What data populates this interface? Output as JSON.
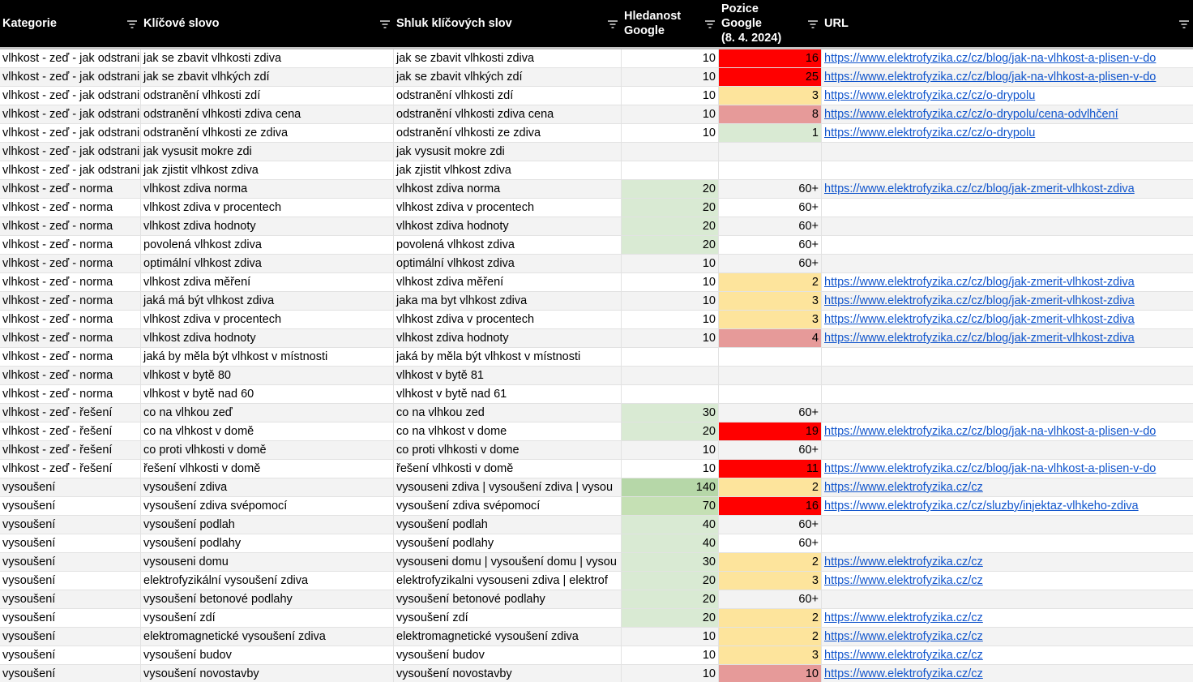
{
  "table": {
    "headers": [
      "Kategorie",
      "Klíčové slovo",
      "Shluk klíčových slov",
      "Hledanost\nGoogle",
      "Pozice\nGoogle\n(8. 4. 2024)",
      "URL"
    ],
    "rows": [
      [
        "vlhkost - zeď - jak odstrani",
        "jak se zbavit vlhkosti zdiva",
        "jak se zbavit vlhkosti zdiva",
        10,
        16,
        "https://www.elektrofyzika.cz/cz/blog/jak-na-vlhkost-a-plisen-v-do"
      ],
      [
        "vlhkost - zeď - jak odstrani",
        "jak se zbavit vlhkých zdí",
        "jak se zbavit vlhkých zdí",
        10,
        25,
        "https://www.elektrofyzika.cz/cz/blog/jak-na-vlhkost-a-plisen-v-do"
      ],
      [
        "vlhkost - zeď - jak odstrani",
        "odstranění vlhkosti zdí",
        "odstranění vlhkosti zdí",
        10,
        3,
        "https://www.elektrofyzika.cz/cz/o-drypolu"
      ],
      [
        "vlhkost - zeď - jak odstrani",
        "odstranění vlhkosti zdiva cena",
        "odstranění vlhkosti zdiva cena",
        10,
        8,
        "https://www.elektrofyzika.cz/cz/o-drypolu/cena-odvlhčení"
      ],
      [
        "vlhkost - zeď - jak odstrani",
        "odstranění vlhkosti ze zdiva",
        "odstranění vlhkosti ze zdiva",
        10,
        1,
        "https://www.elektrofyzika.cz/cz/o-drypolu"
      ],
      [
        "vlhkost - zeď - jak odstrani",
        "jak vysusit mokre zdi",
        "jak vysusit mokre zdi",
        null,
        null,
        null
      ],
      [
        "vlhkost - zeď - jak odstrani",
        "jak zjistit vlhkost zdiva",
        "jak zjistit vlhkost zdiva",
        null,
        null,
        null
      ],
      [
        "vlhkost - zeď - norma",
        "vlhkost zdiva norma",
        "vlhkost zdiva norma",
        20,
        "60+",
        "https://www.elektrofyzika.cz/cz/blog/jak-zmerit-vlhkost-zdiva"
      ],
      [
        "vlhkost - zeď - norma",
        "vlhkost zdiva v procentech",
        "vlhkost zdiva v procentech",
        20,
        "60+",
        null
      ],
      [
        "vlhkost - zeď - norma",
        "vlhkost zdiva hodnoty",
        "vlhkost zdiva hodnoty",
        20,
        "60+",
        null
      ],
      [
        "vlhkost - zeď - norma",
        "povolená vlhkost zdiva",
        "povolená vlhkost zdiva",
        20,
        "60+",
        null
      ],
      [
        "vlhkost - zeď - norma",
        "optimální vlhkost zdiva",
        "optimální vlhkost zdiva",
        10,
        "60+",
        null
      ],
      [
        "vlhkost - zeď - norma",
        "vlhkost zdiva měření",
        "vlhkost zdiva měření",
        10,
        2,
        "https://www.elektrofyzika.cz/cz/blog/jak-zmerit-vlhkost-zdiva"
      ],
      [
        "vlhkost - zeď - norma",
        "jaká má být vlhkost zdiva",
        "jaka ma byt vlhkost zdiva",
        10,
        3,
        "https://www.elektrofyzika.cz/cz/blog/jak-zmerit-vlhkost-zdiva"
      ],
      [
        "vlhkost - zeď - norma",
        "vlhkost zdiva v procentech",
        "vlhkost zdiva v procentech",
        10,
        3,
        "https://www.elektrofyzika.cz/cz/blog/jak-zmerit-vlhkost-zdiva"
      ],
      [
        "vlhkost - zeď - norma",
        "vlhkost zdiva hodnoty",
        "vlhkost zdiva hodnoty",
        10,
        4,
        "https://www.elektrofyzika.cz/cz/blog/jak-zmerit-vlhkost-zdiva"
      ],
      [
        "vlhkost - zeď - norma",
        "jaká by měla být vlhkost v místnosti",
        "jaká by měla být vlhkost v místnosti",
        null,
        null,
        null
      ],
      [
        "vlhkost - zeď - norma",
        "vlhkost v bytě 80",
        "vlhkost v bytě 81",
        null,
        null,
        null
      ],
      [
        "vlhkost - zeď - norma",
        "vlhkost v bytě nad 60",
        "vlhkost v bytě nad 61",
        null,
        null,
        null
      ],
      [
        "vlhkost - zeď - řešení",
        "co na vlhkou zeď",
        "co na vlhkou zed",
        30,
        "60+",
        null
      ],
      [
        "vlhkost - zeď - řešení",
        "co na vlhkost v domě",
        "co na vlhkost v dome",
        20,
        19,
        "https://www.elektrofyzika.cz/cz/blog/jak-na-vlhkost-a-plisen-v-do"
      ],
      [
        "vlhkost - zeď - řešení",
        "co proti vlhkosti v domě",
        "co proti vlhkosti v dome",
        10,
        "60+",
        null
      ],
      [
        "vlhkost - zeď - řešení",
        "řešení vlhkosti v domě",
        "řešení vlhkosti v domě",
        10,
        11,
        "https://www.elektrofyzika.cz/cz/blog/jak-na-vlhkost-a-plisen-v-do"
      ],
      [
        "vysoušení",
        "vysoušení zdiva",
        "vysouseni zdiva | vysoušení zdiva | vysou",
        140,
        2,
        "https://www.elektrofyzika.cz/cz"
      ],
      [
        "vysoušení",
        "vysoušení zdiva svépomocí",
        "vysoušení zdiva svépomocí",
        70,
        16,
        "https://www.elektrofyzika.cz/cz/sluzby/injektaz-vlhkeho-zdiva"
      ],
      [
        "vysoušení",
        "vysoušení podlah",
        "vysoušení podlah",
        40,
        "60+",
        null
      ],
      [
        "vysoušení",
        "vysoušení podlahy",
        "vysoušení podlahy",
        40,
        "60+",
        null
      ],
      [
        "vysoušení",
        "vysouseni domu",
        "vysouseni domu | vysoušení domu | vysou",
        30,
        2,
        "https://www.elektrofyzika.cz/cz"
      ],
      [
        "vysoušení",
        "elektrofyzikální vysoušení zdiva",
        "elektrofyzikalni vysouseni zdiva | elektrof",
        20,
        3,
        "https://www.elektrofyzika.cz/cz"
      ],
      [
        "vysoušení",
        "vysoušení betonové podlahy",
        "vysoušení betonové podlahy",
        20,
        "60+",
        null
      ],
      [
        "vysoušení",
        "vysoušení zdí",
        "vysoušení zdí",
        20,
        2,
        "https://www.elektrofyzika.cz/cz"
      ],
      [
        "vysoušení",
        "elektromagnetické vysoušení zdiva",
        "elektromagnetické vysoušení zdiva",
        10,
        2,
        "https://www.elektrofyzika.cz/cz"
      ],
      [
        "vysoušení",
        "vysoušení budov",
        "vysoušení budov",
        10,
        3,
        "https://www.elektrofyzika.cz/cz"
      ],
      [
        "vysoušení",
        "vysoušení novostavby",
        "vysoušení novostavby",
        10,
        10,
        "https://www.elektrofyzika.cz/cz"
      ]
    ],
    "highlights": [
      [
        null,
        "#ff0000"
      ],
      [
        null,
        "#ff0000"
      ],
      [
        null,
        "#fde49c"
      ],
      [
        null,
        "#e69a99"
      ],
      [
        null,
        "#d9ead3"
      ],
      [
        null,
        null
      ],
      [
        null,
        null
      ],
      [
        "#d9ead3",
        null
      ],
      [
        "#d9ead3",
        null
      ],
      [
        "#d9ead3",
        null
      ],
      [
        "#d9ead3",
        null
      ],
      [
        null,
        null
      ],
      [
        null,
        "#fde49c"
      ],
      [
        null,
        "#fde49c"
      ],
      [
        null,
        "#fde49c"
      ],
      [
        null,
        "#e69a99"
      ],
      [
        null,
        null
      ],
      [
        null,
        null
      ],
      [
        null,
        null
      ],
      [
        "#d9ead3",
        null
      ],
      [
        "#d9ead3",
        "#ff0000"
      ],
      [
        null,
        null
      ],
      [
        null,
        "#ff0000"
      ],
      [
        "#b6d7a8",
        "#fde49c"
      ],
      [
        "#c5e0b4",
        "#ff0000"
      ],
      [
        "#d9ead3",
        null
      ],
      [
        "#d9ead3",
        null
      ],
      [
        "#d9ead3",
        "#fde49c"
      ],
      [
        "#d9ead3",
        "#fde49c"
      ],
      [
        "#d9ead3",
        null
      ],
      [
        "#d9ead3",
        "#fde49c"
      ],
      [
        null,
        "#fde49c"
      ],
      [
        null,
        "#fde49c"
      ],
      [
        null,
        "#e69a99"
      ]
    ]
  }
}
